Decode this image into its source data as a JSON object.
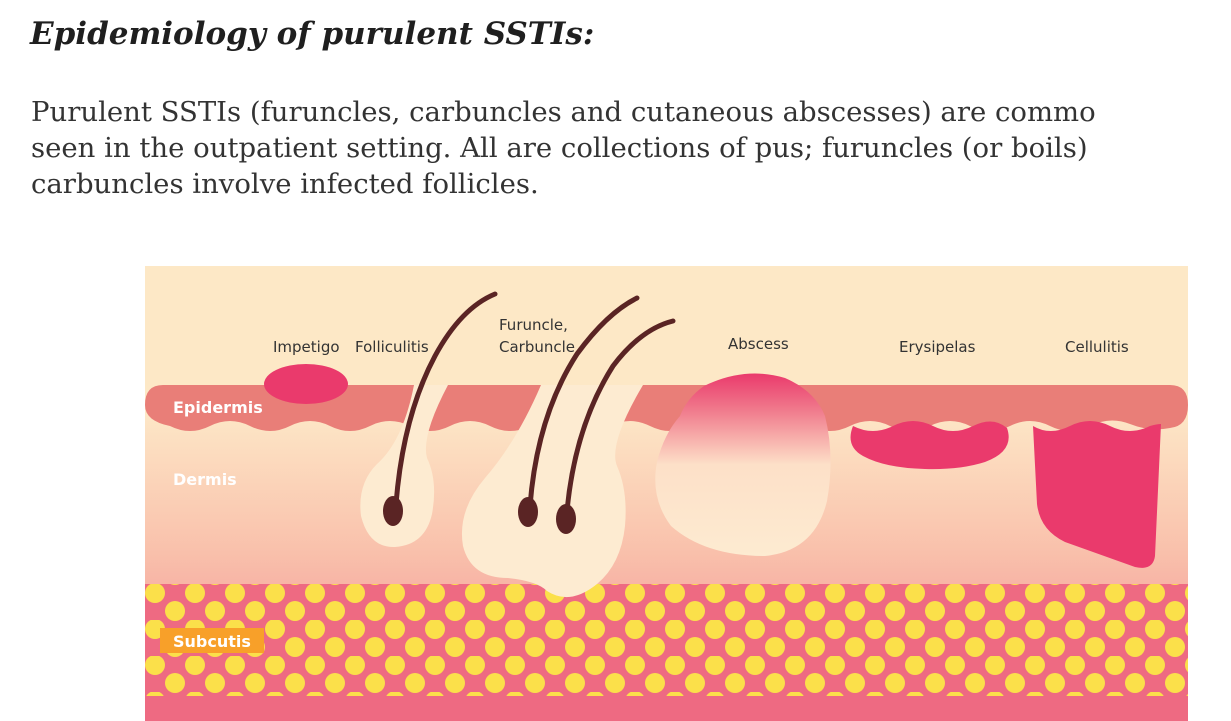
{
  "heading": "Epidemiology of purulent SSTIs:",
  "paragraph": {
    "lines": [
      "Purulent SSTIs (furuncles, carbuncles and cutaneous abscesses) are commo",
      "seen in the outpatient setting.  All are collections of pus; furuncles (or boils)",
      "carbuncles involve infected follicles."
    ]
  },
  "figure": {
    "conditions": {
      "impetigo": "Impetigo",
      "folliculitis": "Folliculitis",
      "furuncle_line1": "Furuncle,",
      "furuncle_line2": "Carbuncle",
      "abscess": "Abscess",
      "erysipelas": "Erysipelas",
      "cellulitis": "Cellulitis"
    },
    "layers": {
      "epidermis": "Epidermis",
      "dermis": "Dermis",
      "subcutis": "Subcutis"
    },
    "colors": {
      "background": "#fde8c6",
      "epidermis": "#e97e78",
      "infection": "#ea3a6c",
      "pus": "#fdebd1",
      "hair": "#5a2424",
      "fat_globule": "#fbe04a",
      "subcutis_label_bg": "#f8a029"
    }
  }
}
